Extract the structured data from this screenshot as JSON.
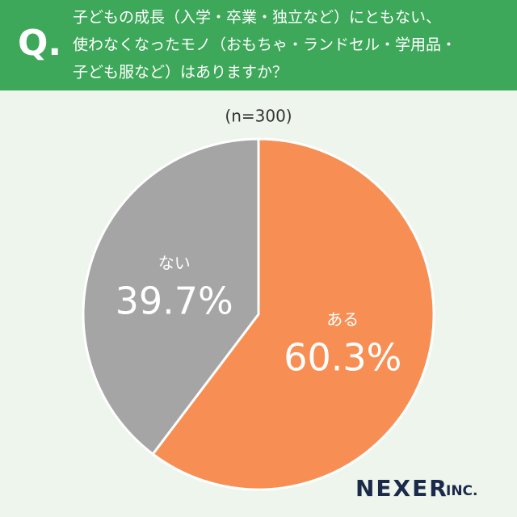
{
  "chart_data": {
    "type": "pie",
    "marker": "Q.",
    "title": [
      "子どもの成長（入学・卒業・独立など）にともない、",
      "使わなくなったモノ（おもちゃ・ランドセル・学用品・",
      "子ども服など）はありますか？"
    ],
    "subtitle": "(n=300)",
    "categories": [
      "ある",
      "ない"
    ],
    "values": [
      60.3,
      39.7
    ],
    "value_labels": [
      "60.3%",
      "39.7%"
    ],
    "colors": [
      "#f78f54",
      "#a5a5a5"
    ],
    "brand": "NEXER",
    "brand_suffix": "INC."
  }
}
